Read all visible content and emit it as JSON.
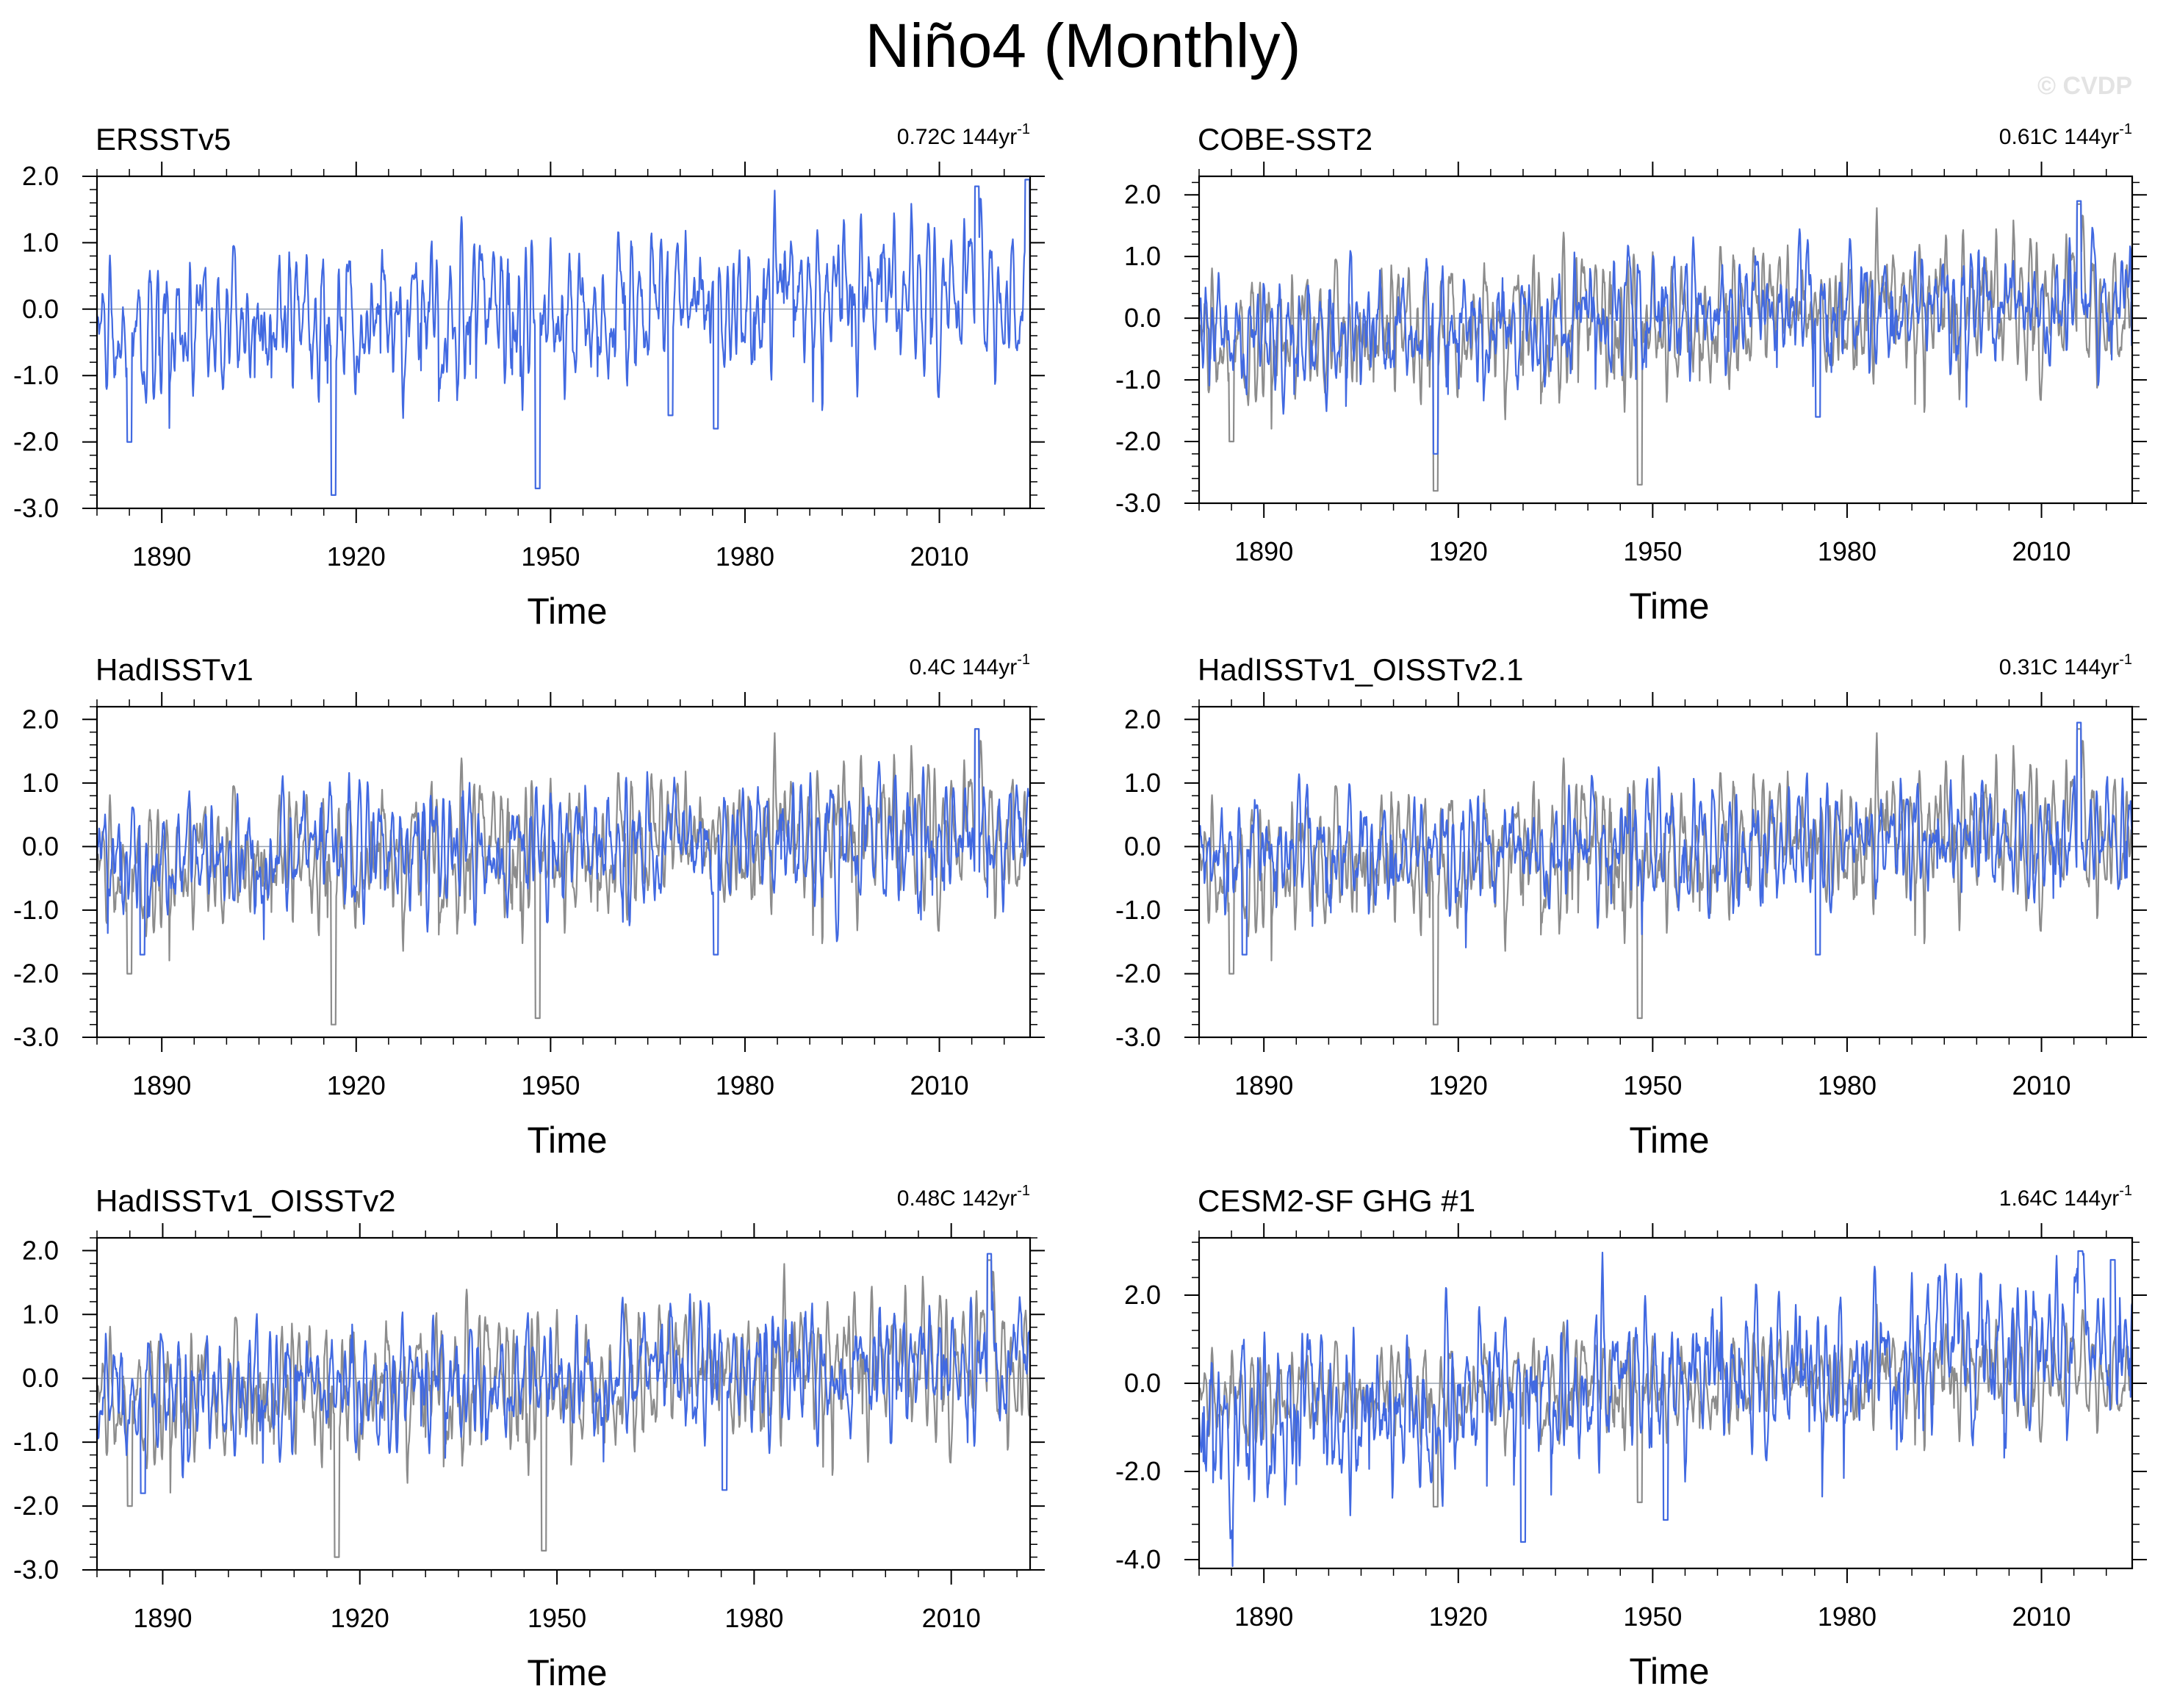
{
  "figure": {
    "title": "Niño4 (Monthly)",
    "watermark": "© CVDP"
  },
  "colors": {
    "dataset": "#4169e1",
    "observations": "#8c8c8c",
    "axis": "#000000",
    "zero_line": "#9aa3b0"
  },
  "chart_data": [
    {
      "type": "line",
      "title": "ERSSTv5",
      "trend_value": "0.72C",
      "trend_period": "144yr",
      "trend_exp": "-1",
      "xlabel": "Time",
      "ylabel": "",
      "xlim": [
        1880,
        2024
      ],
      "ylim": [
        -3.0,
        2.0
      ],
      "xticks": [
        "1890",
        "1920",
        "1950",
        "1980",
        "2010"
      ],
      "yticks": [
        "2.0",
        "1.0",
        "0.0",
        "-1.0",
        "-2.0",
        "-3.0"
      ],
      "series": [
        {
          "role": "dataset",
          "seed": 11,
          "amp": 0.85,
          "trend": 0.5,
          "dips": [
            [
              1885.0,
              -2.0
            ],
            [
              1916.5,
              -2.8
            ],
            [
              1948.0,
              -2.7
            ],
            [
              1968.5,
              -1.6
            ],
            [
              1975.5,
              -1.8
            ]
          ],
          "peaks": [
            [
              2015.8,
              1.85
            ],
            [
              2023.6,
              1.95
            ]
          ]
        }
      ]
    },
    {
      "type": "line",
      "title": "COBE-SST2",
      "trend_value": "0.61C",
      "trend_period": "144yr",
      "trend_exp": "-1",
      "xlabel": "Time",
      "ylabel": "",
      "xlim": [
        1880,
        2024
      ],
      "ylim": [
        -3.0,
        2.3
      ],
      "xticks": [
        "1890",
        "1920",
        "1950",
        "1980",
        "2010"
      ],
      "yticks": [
        "2.0",
        "1.0",
        "0.0",
        "-1.0",
        "-2.0",
        "-3.0"
      ],
      "series": [
        {
          "role": "observations",
          "seed": 11,
          "amp": 0.85,
          "trend": 0.5,
          "dips": [
            [
              1885.0,
              -2.0
            ],
            [
              1916.5,
              -2.8
            ],
            [
              1948.0,
              -2.7
            ]
          ],
          "peaks": [
            [
              2015.8,
              1.85
            ]
          ]
        },
        {
          "role": "dataset",
          "seed": 23,
          "amp": 0.8,
          "trend": 0.45,
          "dips": [
            [
              1916.5,
              -2.2
            ],
            [
              1975.5,
              -1.6
            ]
          ],
          "peaks": [
            [
              2015.8,
              1.9
            ]
          ]
        }
      ]
    },
    {
      "type": "line",
      "title": "HadISSTv1",
      "trend_value": "0.4C",
      "trend_period": "144yr",
      "trend_exp": "-1",
      "xlabel": "Time",
      "ylabel": "",
      "xlim": [
        1880,
        2024
      ],
      "ylim": [
        -3.0,
        2.2
      ],
      "xticks": [
        "1890",
        "1920",
        "1950",
        "1980",
        "2010"
      ],
      "yticks": [
        "2.0",
        "1.0",
        "0.0",
        "-1.0",
        "-2.0",
        "-3.0"
      ],
      "series": [
        {
          "role": "observations",
          "seed": 11,
          "amp": 0.85,
          "trend": 0.5,
          "dips": [
            [
              1885.0,
              -2.0
            ],
            [
              1916.5,
              -2.8
            ],
            [
              1948.0,
              -2.7
            ]
          ],
          "peaks": [
            [
              2015.8,
              1.85
            ]
          ]
        },
        {
          "role": "dataset",
          "seed": 37,
          "amp": 0.75,
          "trend": 0.35,
          "dips": [
            [
              1887.0,
              -1.7
            ],
            [
              1975.5,
              -1.7
            ]
          ],
          "peaks": [
            [
              2015.8,
              1.85
            ]
          ]
        }
      ]
    },
    {
      "type": "line",
      "title": "HadISSTv1_OISSTv2.1",
      "trend_value": "0.31C",
      "trend_period": "144yr",
      "trend_exp": "-1",
      "xlabel": "Time",
      "ylabel": "",
      "xlim": [
        1880,
        2024
      ],
      "ylim": [
        -3.0,
        2.2
      ],
      "xticks": [
        "1890",
        "1920",
        "1950",
        "1980",
        "2010"
      ],
      "yticks": [
        "2.0",
        "1.0",
        "0.0",
        "-1.0",
        "-2.0",
        "-3.0"
      ],
      "series": [
        {
          "role": "observations",
          "seed": 11,
          "amp": 0.85,
          "trend": 0.5,
          "dips": [
            [
              1885.0,
              -2.0
            ],
            [
              1916.5,
              -2.8
            ],
            [
              1948.0,
              -2.7
            ]
          ],
          "peaks": [
            [
              2015.8,
              1.85
            ]
          ]
        },
        {
          "role": "dataset",
          "seed": 41,
          "amp": 0.75,
          "trend": 0.3,
          "dips": [
            [
              1887.0,
              -1.7
            ],
            [
              1975.5,
              -1.7
            ]
          ],
          "peaks": [
            [
              2015.8,
              1.95
            ]
          ]
        }
      ]
    },
    {
      "type": "line",
      "title": "HadISSTv1_OISSTv2",
      "trend_value": "0.48C",
      "trend_period": "142yr",
      "trend_exp": "-1",
      "xlabel": "Time",
      "ylabel": "",
      "xlim": [
        1880,
        2022
      ],
      "ylim": [
        -3.0,
        2.2
      ],
      "xticks": [
        "1890",
        "1920",
        "1950",
        "1980",
        "2010"
      ],
      "yticks": [
        "2.0",
        "1.0",
        "0.0",
        "-1.0",
        "-2.0",
        "-3.0"
      ],
      "series": [
        {
          "role": "observations",
          "seed": 11,
          "amp": 0.85,
          "trend": 0.5,
          "dips": [
            [
              1885.0,
              -2.0
            ],
            [
              1916.5,
              -2.8
            ],
            [
              1948.0,
              -2.7
            ]
          ],
          "peaks": [
            [
              2015.8,
              1.85
            ]
          ]
        },
        {
          "role": "dataset",
          "seed": 53,
          "amp": 0.75,
          "trend": 0.4,
          "dips": [
            [
              1887.0,
              -1.8
            ],
            [
              1975.5,
              -1.75
            ]
          ],
          "peaks": [
            [
              2015.8,
              1.95
            ]
          ]
        }
      ]
    },
    {
      "type": "line",
      "title": "CESM2-SF GHG #1",
      "trend_value": "1.64C",
      "trend_period": "144yr",
      "trend_exp": "-1",
      "xlabel": "Time",
      "ylabel": "",
      "xlim": [
        1880,
        2024
      ],
      "ylim": [
        -4.2,
        3.3
      ],
      "xticks": [
        "1890",
        "1920",
        "1950",
        "1980",
        "2010"
      ],
      "yticks": [
        "2.0",
        "0.0",
        "-2.0",
        "-4.0"
      ],
      "series": [
        {
          "role": "observations",
          "seed": 11,
          "amp": 0.85,
          "trend": 0.5,
          "dips": [
            [
              1916.5,
              -2.8
            ],
            [
              1948.0,
              -2.7
            ]
          ],
          "peaks": []
        },
        {
          "role": "dataset",
          "seed": 67,
          "amp": 1.45,
          "trend": 1.64,
          "dips": [
            [
              1930.0,
              -3.6
            ],
            [
              1952.0,
              -3.1
            ]
          ],
          "peaks": [
            [
              2016.0,
              3.0
            ],
            [
              2021.0,
              2.8
            ]
          ]
        }
      ]
    }
  ]
}
